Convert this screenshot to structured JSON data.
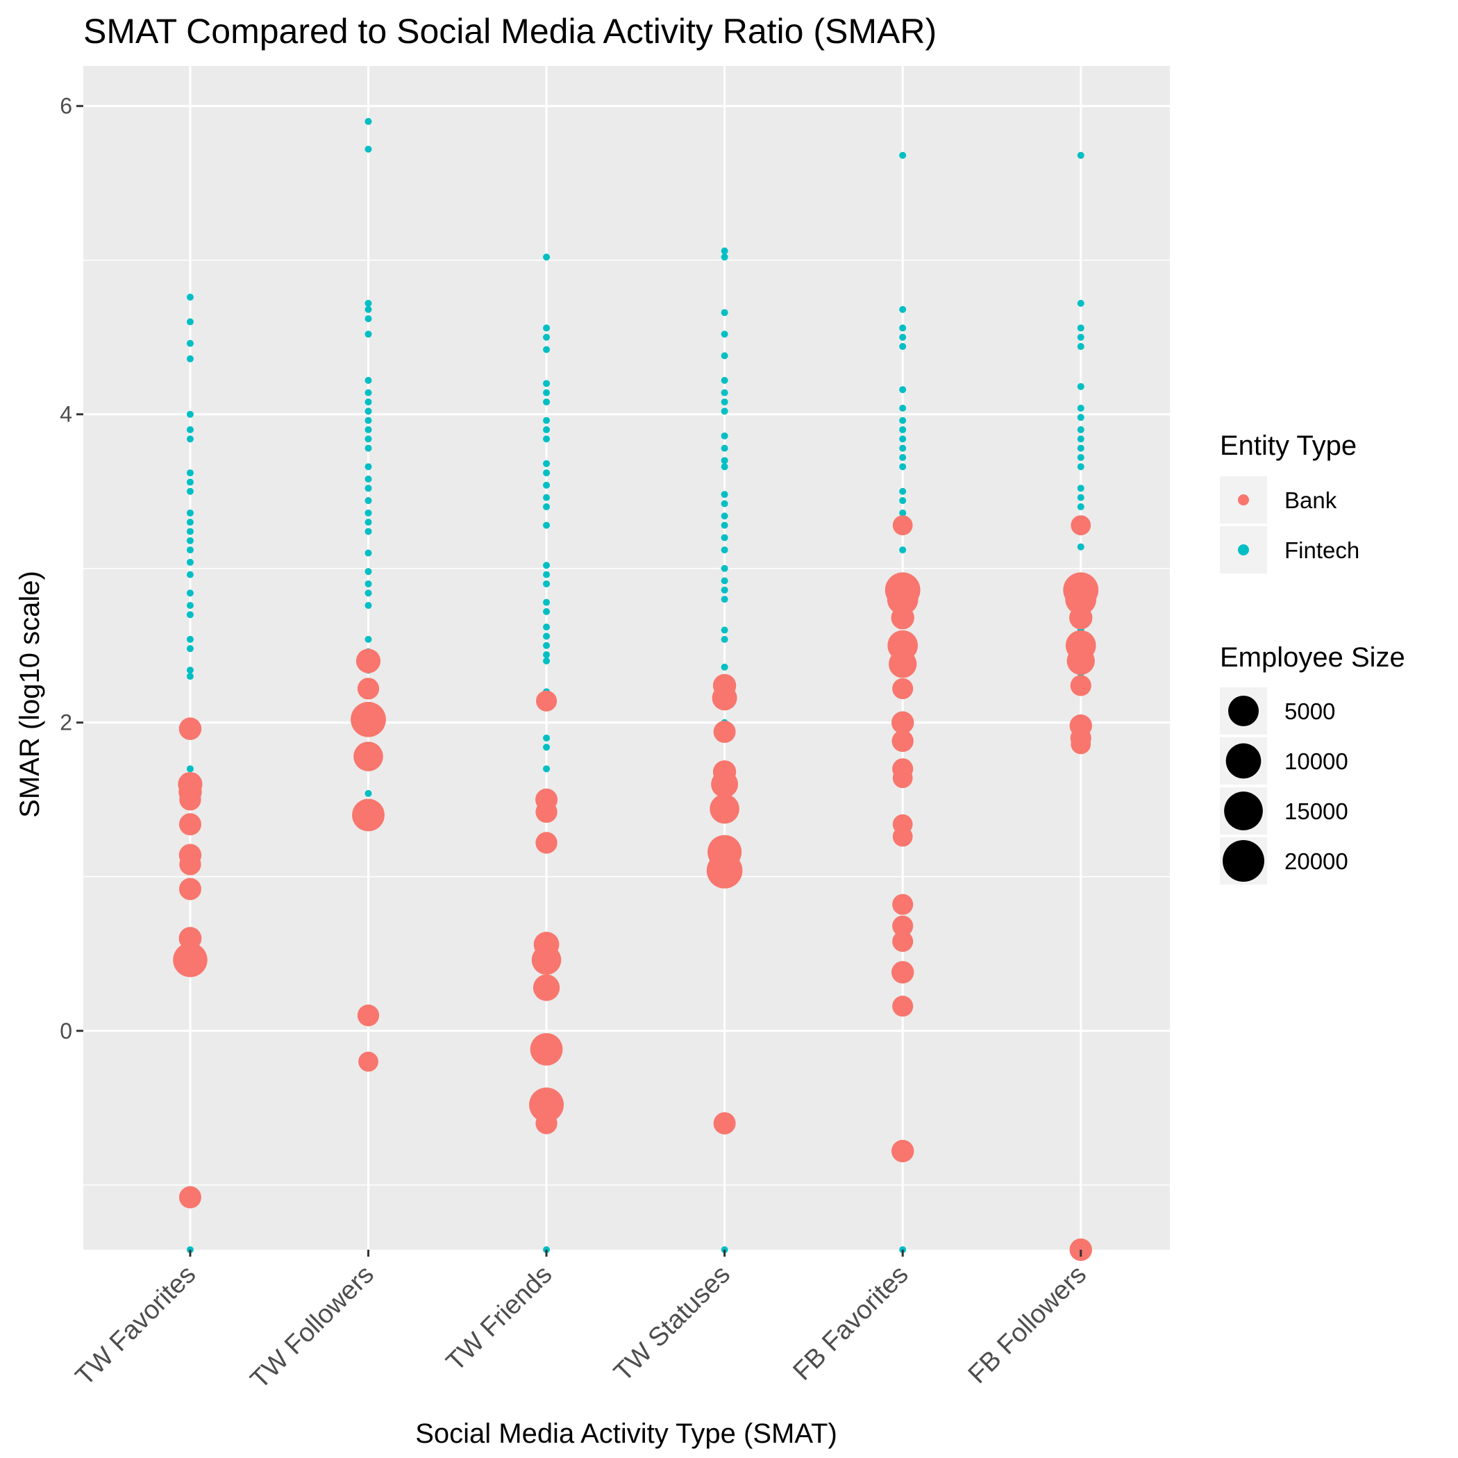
{
  "chart_data": {
    "type": "scatter",
    "title": "SMAT Compared to Social Media Activity Ratio (SMAR)",
    "xlabel": "Social Media Activity Type (SMAT)",
    "ylabel": "SMAR (log10 scale)",
    "categories": [
      "TW Favorites",
      "TW Followers",
      "TW Friends",
      "TW Statuses",
      "FB Favorites",
      "FB Followers"
    ],
    "ylim": [
      -1.42,
      6.26
    ],
    "yticks": [
      0,
      2,
      4,
      6
    ],
    "grid": true,
    "background": "#ebebeb",
    "legend_placement": "right",
    "color_legend": {
      "title": "Entity Type",
      "entries": [
        {
          "label": "Bank",
          "color": "#F8766D"
        },
        {
          "label": "Fintech",
          "color": "#00BFC4"
        }
      ]
    },
    "size_legend": {
      "title": "Employee Size",
      "entries": [
        {
          "label": "5000",
          "value": 5000
        },
        {
          "label": "10000",
          "value": 10000
        },
        {
          "label": "15000",
          "value": 15000
        },
        {
          "label": "20000",
          "value": 20000
        }
      ]
    },
    "series": [
      {
        "name": "Fintech",
        "color": "#00BFC4",
        "points": [
          [
            "TW Favorites",
            4.76
          ],
          [
            "TW Favorites",
            4.6
          ],
          [
            "TW Favorites",
            4.46
          ],
          [
            "TW Favorites",
            4.36
          ],
          [
            "TW Favorites",
            4.0
          ],
          [
            "TW Favorites",
            3.9
          ],
          [
            "TW Favorites",
            3.84
          ],
          [
            "TW Favorites",
            3.62
          ],
          [
            "TW Favorites",
            3.56
          ],
          [
            "TW Favorites",
            3.5
          ],
          [
            "TW Favorites",
            3.36
          ],
          [
            "TW Favorites",
            3.3
          ],
          [
            "TW Favorites",
            3.24
          ],
          [
            "TW Favorites",
            3.18
          ],
          [
            "TW Favorites",
            3.12
          ],
          [
            "TW Favorites",
            3.04
          ],
          [
            "TW Favorites",
            2.96
          ],
          [
            "TW Favorites",
            2.84
          ],
          [
            "TW Favorites",
            2.76
          ],
          [
            "TW Favorites",
            2.7
          ],
          [
            "TW Favorites",
            2.54
          ],
          [
            "TW Favorites",
            2.48
          ],
          [
            "TW Favorites",
            2.34
          ],
          [
            "TW Favorites",
            2.3
          ],
          [
            "TW Favorites",
            1.7
          ],
          [
            "TW Favorites",
            1.64
          ],
          [
            "TW Favorites",
            1.3
          ],
          [
            "TW Favorites",
            -1.42
          ],
          [
            "TW Followers",
            5.9
          ],
          [
            "TW Followers",
            5.72
          ],
          [
            "TW Followers",
            4.72
          ],
          [
            "TW Followers",
            4.68
          ],
          [
            "TW Followers",
            4.62
          ],
          [
            "TW Followers",
            4.52
          ],
          [
            "TW Followers",
            4.22
          ],
          [
            "TW Followers",
            4.14
          ],
          [
            "TW Followers",
            4.08
          ],
          [
            "TW Followers",
            4.02
          ],
          [
            "TW Followers",
            3.96
          ],
          [
            "TW Followers",
            3.9
          ],
          [
            "TW Followers",
            3.84
          ],
          [
            "TW Followers",
            3.78
          ],
          [
            "TW Followers",
            3.66
          ],
          [
            "TW Followers",
            3.58
          ],
          [
            "TW Followers",
            3.52
          ],
          [
            "TW Followers",
            3.44
          ],
          [
            "TW Followers",
            3.36
          ],
          [
            "TW Followers",
            3.3
          ],
          [
            "TW Followers",
            3.24
          ],
          [
            "TW Followers",
            3.1
          ],
          [
            "TW Followers",
            2.98
          ],
          [
            "TW Followers",
            2.9
          ],
          [
            "TW Followers",
            2.84
          ],
          [
            "TW Followers",
            2.76
          ],
          [
            "TW Followers",
            2.54
          ],
          [
            "TW Followers",
            2.46
          ],
          [
            "TW Followers",
            2.34
          ],
          [
            "TW Followers",
            2.2
          ],
          [
            "TW Followers",
            2.1
          ],
          [
            "TW Followers",
            1.54
          ],
          [
            "TW Friends",
            5.02
          ],
          [
            "TW Friends",
            4.56
          ],
          [
            "TW Friends",
            4.5
          ],
          [
            "TW Friends",
            4.42
          ],
          [
            "TW Friends",
            4.2
          ],
          [
            "TW Friends",
            4.14
          ],
          [
            "TW Friends",
            4.08
          ],
          [
            "TW Friends",
            3.96
          ],
          [
            "TW Friends",
            3.9
          ],
          [
            "TW Friends",
            3.84
          ],
          [
            "TW Friends",
            3.68
          ],
          [
            "TW Friends",
            3.62
          ],
          [
            "TW Friends",
            3.54
          ],
          [
            "TW Friends",
            3.46
          ],
          [
            "TW Friends",
            3.4
          ],
          [
            "TW Friends",
            3.28
          ],
          [
            "TW Friends",
            3.02
          ],
          [
            "TW Friends",
            2.96
          ],
          [
            "TW Friends",
            2.9
          ],
          [
            "TW Friends",
            2.78
          ],
          [
            "TW Friends",
            2.72
          ],
          [
            "TW Friends",
            2.62
          ],
          [
            "TW Friends",
            2.56
          ],
          [
            "TW Friends",
            2.5
          ],
          [
            "TW Friends",
            2.44
          ],
          [
            "TW Friends",
            2.4
          ],
          [
            "TW Friends",
            2.2
          ],
          [
            "TW Friends",
            1.9
          ],
          [
            "TW Friends",
            1.84
          ],
          [
            "TW Friends",
            1.7
          ],
          [
            "TW Friends",
            -1.42
          ],
          [
            "TW Statuses",
            5.06
          ],
          [
            "TW Statuses",
            5.02
          ],
          [
            "TW Statuses",
            4.66
          ],
          [
            "TW Statuses",
            4.52
          ],
          [
            "TW Statuses",
            4.38
          ],
          [
            "TW Statuses",
            4.22
          ],
          [
            "TW Statuses",
            4.14
          ],
          [
            "TW Statuses",
            4.08
          ],
          [
            "TW Statuses",
            4.02
          ],
          [
            "TW Statuses",
            3.86
          ],
          [
            "TW Statuses",
            3.78
          ],
          [
            "TW Statuses",
            3.7
          ],
          [
            "TW Statuses",
            3.66
          ],
          [
            "TW Statuses",
            3.48
          ],
          [
            "TW Statuses",
            3.42
          ],
          [
            "TW Statuses",
            3.34
          ],
          [
            "TW Statuses",
            3.28
          ],
          [
            "TW Statuses",
            3.2
          ],
          [
            "TW Statuses",
            3.12
          ],
          [
            "TW Statuses",
            3.0
          ],
          [
            "TW Statuses",
            2.92
          ],
          [
            "TW Statuses",
            2.86
          ],
          [
            "TW Statuses",
            2.8
          ],
          [
            "TW Statuses",
            2.6
          ],
          [
            "TW Statuses",
            2.54
          ],
          [
            "TW Statuses",
            2.36
          ],
          [
            "TW Statuses",
            2.22
          ],
          [
            "TW Statuses",
            2.0
          ],
          [
            "TW Statuses",
            1.22
          ],
          [
            "TW Statuses",
            -1.42
          ],
          [
            "FB Favorites",
            5.68
          ],
          [
            "FB Favorites",
            4.68
          ],
          [
            "FB Favorites",
            4.56
          ],
          [
            "FB Favorites",
            4.5
          ],
          [
            "FB Favorites",
            4.44
          ],
          [
            "FB Favorites",
            4.16
          ],
          [
            "FB Favorites",
            4.04
          ],
          [
            "FB Favorites",
            3.96
          ],
          [
            "FB Favorites",
            3.9
          ],
          [
            "FB Favorites",
            3.84
          ],
          [
            "FB Favorites",
            3.78
          ],
          [
            "FB Favorites",
            3.72
          ],
          [
            "FB Favorites",
            3.66
          ],
          [
            "FB Favorites",
            3.5
          ],
          [
            "FB Favorites",
            3.44
          ],
          [
            "FB Favorites",
            3.36
          ],
          [
            "FB Favorites",
            3.3
          ],
          [
            "FB Favorites",
            3.12
          ],
          [
            "FB Favorites",
            2.86
          ],
          [
            "FB Favorites",
            2.76
          ],
          [
            "FB Favorites",
            2.7
          ],
          [
            "FB Favorites",
            2.56
          ],
          [
            "FB Favorites",
            2.32
          ],
          [
            "FB Favorites",
            2.24
          ],
          [
            "FB Favorites",
            -1.42
          ],
          [
            "FB Followers",
            5.68
          ],
          [
            "FB Followers",
            4.72
          ],
          [
            "FB Followers",
            4.56
          ],
          [
            "FB Followers",
            4.5
          ],
          [
            "FB Followers",
            4.44
          ],
          [
            "FB Followers",
            4.18
          ],
          [
            "FB Followers",
            4.04
          ],
          [
            "FB Followers",
            3.98
          ],
          [
            "FB Followers",
            3.9
          ],
          [
            "FB Followers",
            3.84
          ],
          [
            "FB Followers",
            3.78
          ],
          [
            "FB Followers",
            3.72
          ],
          [
            "FB Followers",
            3.66
          ],
          [
            "FB Followers",
            3.52
          ],
          [
            "FB Followers",
            3.46
          ],
          [
            "FB Followers",
            3.4
          ],
          [
            "FB Followers",
            3.14
          ],
          [
            "FB Followers",
            2.94
          ],
          [
            "FB Followers",
            2.78
          ],
          [
            "FB Followers",
            2.72
          ],
          [
            "FB Followers",
            2.6
          ],
          [
            "FB Followers",
            2.32
          ],
          [
            "FB Followers",
            2.24
          ],
          [
            "FB Followers",
            -1.42
          ]
        ]
      },
      {
        "name": "Bank",
        "color": "#F8766D",
        "points": [
          [
            "TW Favorites",
            1.96,
            3000
          ],
          [
            "TW Favorites",
            1.6,
            4500
          ],
          [
            "TW Favorites",
            1.55,
            3500
          ],
          [
            "TW Favorites",
            1.5,
            2500
          ],
          [
            "TW Favorites",
            1.34,
            2800
          ],
          [
            "TW Favorites",
            1.14,
            3000
          ],
          [
            "TW Favorites",
            1.08,
            2500
          ],
          [
            "TW Favorites",
            0.92,
            2800
          ],
          [
            "TW Favorites",
            0.6,
            3200
          ],
          [
            "TW Favorites",
            0.46,
            17000
          ],
          [
            "TW Favorites",
            -1.08,
            2800
          ],
          [
            "TW Followers",
            2.4,
            4500
          ],
          [
            "TW Followers",
            2.22,
            2500
          ],
          [
            "TW Followers",
            2.02,
            18500
          ],
          [
            "TW Followers",
            1.78,
            10000
          ],
          [
            "TW Followers",
            1.4,
            14000
          ],
          [
            "TW Followers",
            0.1,
            2500
          ],
          [
            "TW Followers",
            -0.2,
            1500
          ],
          [
            "TW Friends",
            2.14,
            2000
          ],
          [
            "TW Friends",
            1.5,
            2800
          ],
          [
            "TW Friends",
            1.42,
            2500
          ],
          [
            "TW Friends",
            1.22,
            2500
          ],
          [
            "TW Friends",
            0.56,
            5500
          ],
          [
            "TW Friends",
            0.46,
            10000
          ],
          [
            "TW Friends",
            0.28,
            6500
          ],
          [
            "TW Friends",
            -0.12,
            14000
          ],
          [
            "TW Friends",
            -0.48,
            17500
          ],
          [
            "TW Friends",
            -0.6,
            2500
          ],
          [
            "TW Statuses",
            2.24,
            3500
          ],
          [
            "TW Statuses",
            2.16,
            5000
          ],
          [
            "TW Statuses",
            1.94,
            2800
          ],
          [
            "TW Statuses",
            1.68,
            3500
          ],
          [
            "TW Statuses",
            1.6,
            7000
          ],
          [
            "TW Statuses",
            1.44,
            10000
          ],
          [
            "TW Statuses",
            1.16,
            16500
          ],
          [
            "TW Statuses",
            1.04,
            19500
          ],
          [
            "TW Statuses",
            -0.6,
            2800
          ],
          [
            "FB Favorites",
            3.28,
            1500
          ],
          [
            "FB Favorites",
            2.86,
            18500
          ],
          [
            "FB Favorites",
            2.8,
            12000
          ],
          [
            "FB Favorites",
            2.68,
            3500
          ],
          [
            "FB Favorites",
            2.5,
            11000
          ],
          [
            "FB Favorites",
            2.38,
            8000
          ],
          [
            "FB Favorites",
            2.22,
            2000
          ],
          [
            "FB Favorites",
            2.0,
            3000
          ],
          [
            "FB Favorites",
            1.88,
            2500
          ],
          [
            "FB Favorites",
            1.7,
            2000
          ],
          [
            "FB Favorites",
            1.64,
            1500
          ],
          [
            "FB Favorites",
            1.34,
            1500
          ],
          [
            "FB Favorites",
            1.26,
            1500
          ],
          [
            "FB Favorites",
            0.82,
            2000
          ],
          [
            "FB Favorites",
            0.68,
            2000
          ],
          [
            "FB Favorites",
            0.58,
            2000
          ],
          [
            "FB Favorites",
            0.38,
            3000
          ],
          [
            "FB Favorites",
            0.16,
            2000
          ],
          [
            "FB Favorites",
            -0.78,
            3000
          ],
          [
            "FB Followers",
            3.28,
            1500
          ],
          [
            "FB Followers",
            2.86,
            18500
          ],
          [
            "FB Followers",
            2.8,
            12000
          ],
          [
            "FB Followers",
            2.68,
            3500
          ],
          [
            "FB Followers",
            2.5,
            11000
          ],
          [
            "FB Followers",
            2.4,
            8000
          ],
          [
            "FB Followers",
            2.24,
            2000
          ],
          [
            "FB Followers",
            1.98,
            3000
          ],
          [
            "FB Followers",
            1.9,
            2000
          ],
          [
            "FB Followers",
            1.86,
            1500
          ],
          [
            "FB Followers",
            -1.42,
            3000
          ]
        ]
      }
    ]
  }
}
